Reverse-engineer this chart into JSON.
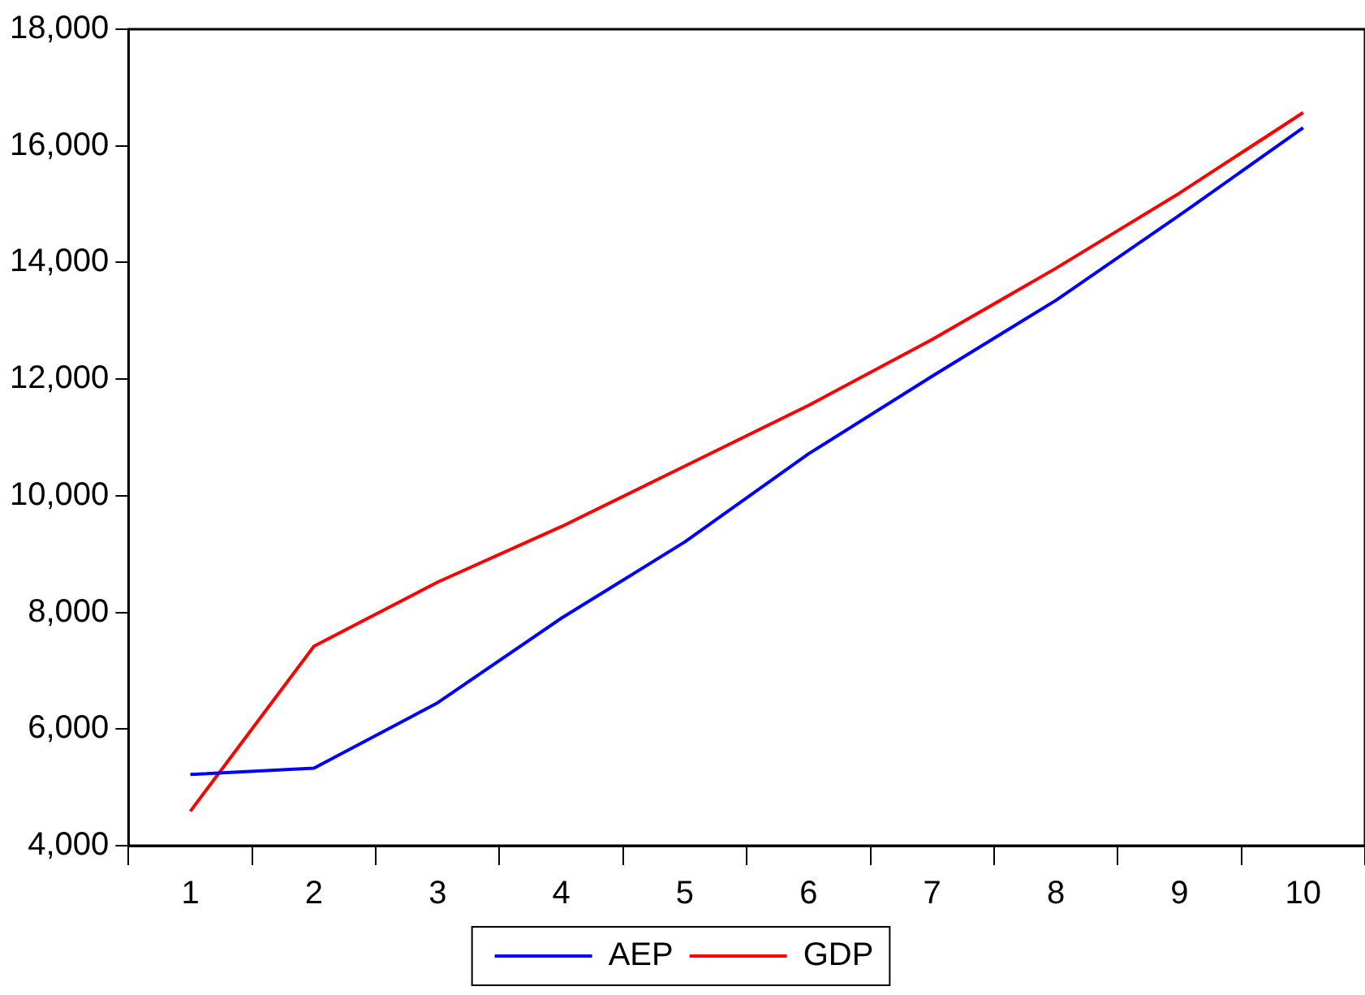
{
  "chart_data": {
    "type": "line",
    "categories": [
      "1",
      "2",
      "3",
      "4",
      "5",
      "6",
      "7",
      "8",
      "9",
      "10"
    ],
    "series": [
      {
        "name": "AEP",
        "color": "#0000ff",
        "values": [
          5220,
          5330,
          6450,
          7900,
          9210,
          10720,
          12050,
          13350,
          14810,
          16310
        ]
      },
      {
        "name": "GDP",
        "color": "#ff0000",
        "values": [
          4590,
          7420,
          8520,
          9470,
          10510,
          11550,
          12680,
          13900,
          15190,
          16570
        ]
      }
    ],
    "ylim": [
      4000,
      18000
    ],
    "yticks": [
      {
        "value": 4000,
        "label": "4,000"
      },
      {
        "value": 6000,
        "label": "6,000"
      },
      {
        "value": 8000,
        "label": "8,000"
      },
      {
        "value": 10000,
        "label": "10,000"
      },
      {
        "value": 12000,
        "label": "12,000"
      },
      {
        "value": 14000,
        "label": "14,000"
      },
      {
        "value": 16000,
        "label": "16,000"
      },
      {
        "value": 18000,
        "label": "18,000"
      }
    ],
    "grid": false,
    "legend": "bottom",
    "marker": "none",
    "line_style": "solid"
  }
}
